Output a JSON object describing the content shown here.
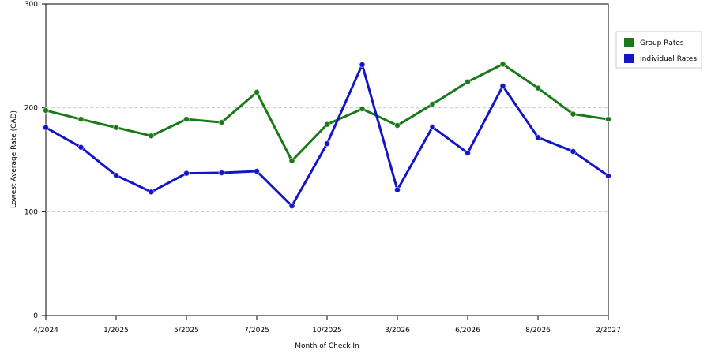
{
  "chart_data": {
    "type": "line",
    "x_label": "Month of Check In",
    "y_label": "Lowest Average Rate (CAD)",
    "categories": [
      "4/2024",
      null,
      "1/2025",
      null,
      "5/2025",
      null,
      "7/2025",
      null,
      "10/2025",
      null,
      "3/2026",
      null,
      "6/2026",
      null,
      "8/2026",
      null,
      "2/2027"
    ],
    "series": [
      {
        "name": "Group Rates",
        "color": "#1a7a1a",
        "values": [
          197.5,
          189,
          181,
          173,
          189,
          186,
          215,
          149,
          184,
          199,
          183,
          203.5,
          225,
          242,
          219,
          194,
          189
        ]
      },
      {
        "name": "Individual Rates",
        "color": "#1414c8",
        "values": [
          181,
          162,
          135,
          119,
          137,
          137.5,
          139,
          105.5,
          165.5,
          241.5,
          121,
          181.5,
          156.5,
          221,
          171.5,
          158,
          134.5
        ]
      }
    ],
    "ylim": [
      0,
      300
    ],
    "yticks": [
      0,
      100,
      200,
      300
    ],
    "grid": true,
    "legend": "right"
  }
}
